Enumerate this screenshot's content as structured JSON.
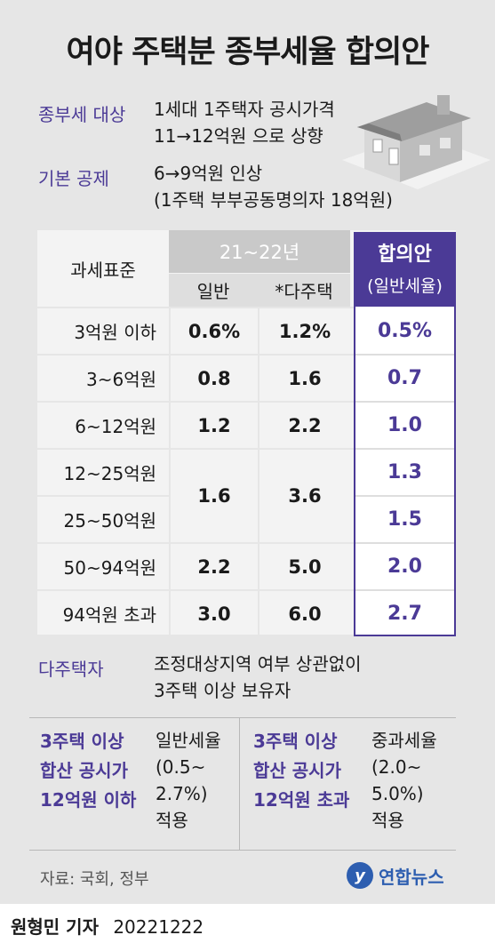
{
  "title": "여야 주택분 종부세율 합의안",
  "info": {
    "target_label": "종부세 대상",
    "target_line1": "1세대 1주택자 공시가격",
    "target_line2": "11→12억원 으로 상향",
    "deduction_label": "기본 공제",
    "deduction_line1": "6→9억원 인상",
    "deduction_line2": "(1주택 부부공동명의자 18억원)"
  },
  "table": {
    "col_label": "과세표준",
    "period": "21~22년",
    "col_general": "일반",
    "col_multi": "*다주택",
    "agreement_title": "합의안",
    "agreement_sub": "(일반세율)",
    "rows": [
      {
        "label": "3억원 이하",
        "general": "0.6%",
        "multi": "1.2%",
        "agreement": "0.5%"
      },
      {
        "label": "3~6억원",
        "general": "0.8",
        "multi": "1.6",
        "agreement": "0.7"
      },
      {
        "label": "6~12억원",
        "general": "1.2",
        "multi": "2.2",
        "agreement": "1.0"
      },
      {
        "label": "12~25억원",
        "agreement": "1.3"
      },
      {
        "label": "25~50억원",
        "agreement": "1.5"
      },
      {
        "label": "50~94억원",
        "general": "2.2",
        "multi": "5.0",
        "agreement": "2.0"
      },
      {
        "label": "94억원 초과",
        "general": "3.0",
        "multi": "6.0",
        "agreement": "2.7"
      }
    ],
    "merged_general": "1.6",
    "merged_multi": "3.6"
  },
  "multi_owner": {
    "label": "다주택자",
    "line1": "조정대상지역 여부 상관없이",
    "line2": "3주택 이상 보유자"
  },
  "bottom": {
    "left_title": [
      "3주택 이상",
      "합산 공시가",
      "12억원 이하"
    ],
    "left_desc": [
      "일반세율",
      "(0.5~",
      "2.7%)",
      "적용"
    ],
    "right_title": [
      "3주택 이상",
      "합산 공시가",
      "12억원 초과"
    ],
    "right_desc": [
      "중과세율",
      "(2.0~",
      "5.0%)",
      "적용"
    ]
  },
  "source": "자료: 국회, 정부",
  "logo_text": "연합뉴스",
  "footer_reporter": "원형민 기자",
  "footer_date": "20221222",
  "colors": {
    "accent": "#4b3a96",
    "background": "#e6e6e6"
  }
}
